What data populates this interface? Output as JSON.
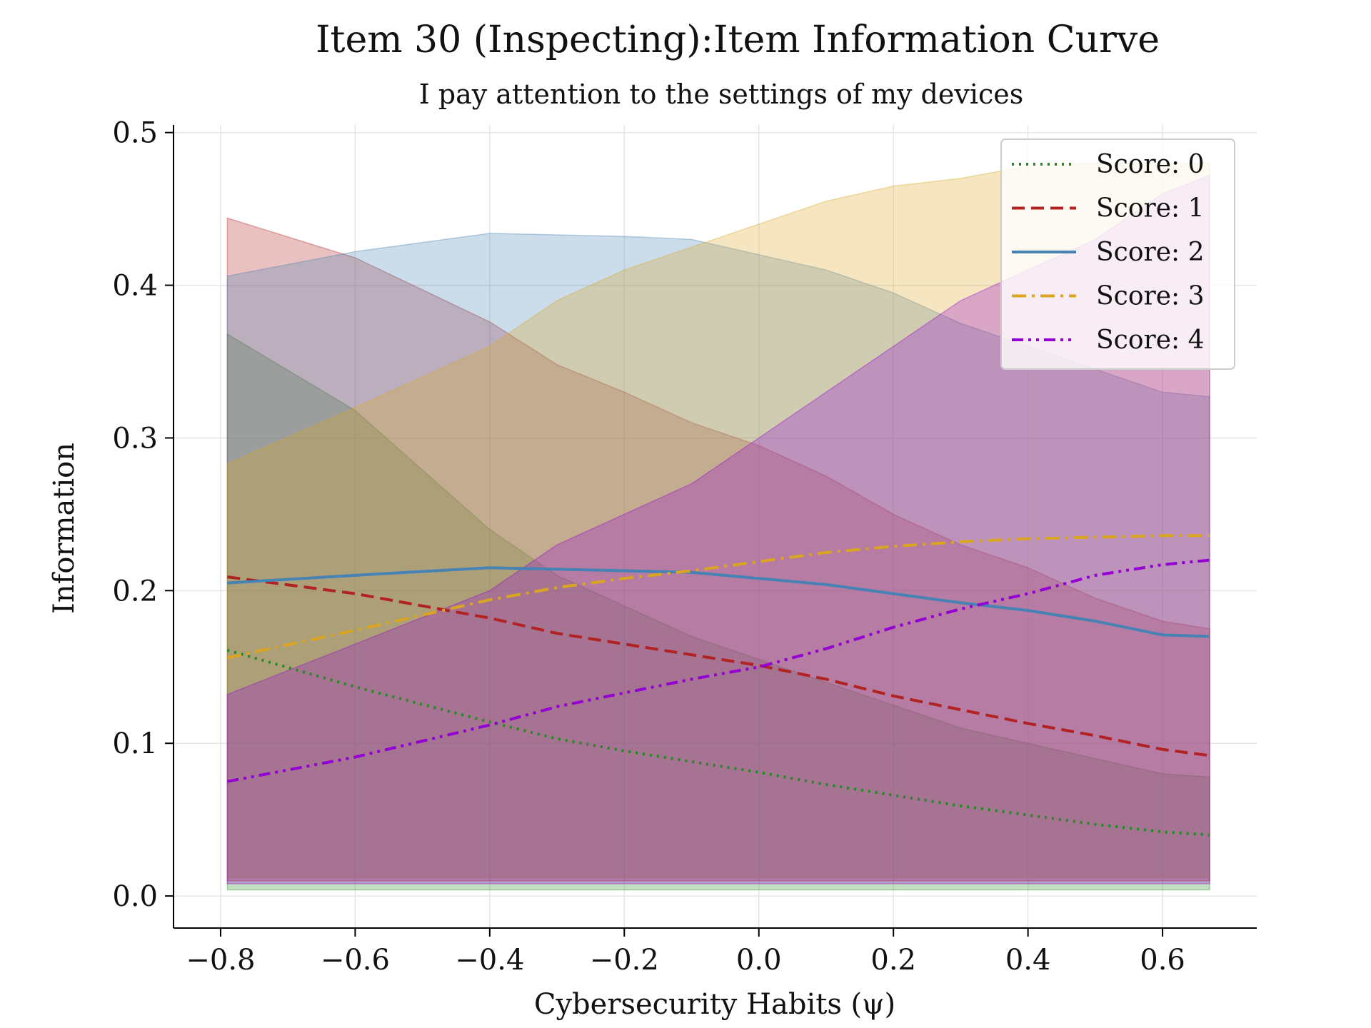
{
  "chart_data": {
    "type": "line",
    "title": "Item 30 (Inspecting):Item Information Curve",
    "subtitle": "I pay attention to the settings of my devices",
    "xlabel": "Cybersecurity Habits (ψ)",
    "ylabel": "Information",
    "xlim": [
      -0.87,
      0.74
    ],
    "ylim": [
      -0.021,
      0.505
    ],
    "xticks": [
      -0.8,
      -0.6,
      -0.4,
      -0.2,
      0.0,
      0.2,
      0.4,
      0.6
    ],
    "xtick_labels": [
      "−0.8",
      "−0.6",
      "−0.4",
      "−0.2",
      "0.0",
      "0.2",
      "0.4",
      "0.6"
    ],
    "yticks": [
      0.0,
      0.1,
      0.2,
      0.3,
      0.4,
      0.5
    ],
    "ytick_labels": [
      "0.0",
      "0.1",
      "0.2",
      "0.3",
      "0.4",
      "0.5"
    ],
    "grid": true,
    "legend_position": "top-right",
    "x": [
      -0.79,
      -0.6,
      -0.4,
      -0.3,
      -0.2,
      -0.1,
      0.0,
      0.1,
      0.2,
      0.3,
      0.4,
      0.5,
      0.6,
      0.67
    ],
    "series": [
      {
        "name": "Score: 0",
        "color": "#228B22",
        "dash": "dotted",
        "values": [
          0.161,
          0.137,
          0.114,
          0.103,
          0.095,
          0.088,
          0.081,
          0.073,
          0.066,
          0.059,
          0.053,
          0.047,
          0.042,
          0.04
        ],
        "upper": [
          0.368,
          0.318,
          0.24,
          0.21,
          0.19,
          0.17,
          0.155,
          0.14,
          0.125,
          0.11,
          0.1,
          0.09,
          0.08,
          0.078
        ],
        "lower": [
          0.004,
          0.004,
          0.004,
          0.004,
          0.004,
          0.004,
          0.004,
          0.004,
          0.004,
          0.004,
          0.004,
          0.004,
          0.004,
          0.004
        ]
      },
      {
        "name": "Score: 1",
        "color": "#B22222",
        "dash": "dashed",
        "values": [
          0.209,
          0.198,
          0.182,
          0.172,
          0.165,
          0.158,
          0.151,
          0.142,
          0.131,
          0.122,
          0.113,
          0.105,
          0.096,
          0.092
        ],
        "upper": [
          0.444,
          0.418,
          0.376,
          0.348,
          0.33,
          0.31,
          0.295,
          0.275,
          0.25,
          0.23,
          0.215,
          0.195,
          0.18,
          0.175
        ],
        "lower": [
          0.01,
          0.01,
          0.01,
          0.01,
          0.01,
          0.01,
          0.01,
          0.01,
          0.01,
          0.01,
          0.01,
          0.01,
          0.01,
          0.01
        ]
      },
      {
        "name": "Score: 2",
        "color": "#4682B4",
        "dash": "solid",
        "values": [
          0.205,
          0.21,
          0.215,
          0.214,
          0.213,
          0.212,
          0.208,
          0.204,
          0.198,
          0.192,
          0.187,
          0.18,
          0.171,
          0.17
        ],
        "upper": [
          0.406,
          0.422,
          0.434,
          0.433,
          0.432,
          0.43,
          0.42,
          0.41,
          0.395,
          0.375,
          0.36,
          0.345,
          0.33,
          0.327
        ],
        "lower": [
          0.012,
          0.012,
          0.012,
          0.012,
          0.012,
          0.012,
          0.012,
          0.012,
          0.012,
          0.012,
          0.012,
          0.012,
          0.012,
          0.012
        ]
      },
      {
        "name": "Score: 3",
        "color": "#DAA520",
        "dash": "dashdot",
        "values": [
          0.156,
          0.174,
          0.194,
          0.202,
          0.208,
          0.213,
          0.219,
          0.225,
          0.229,
          0.232,
          0.234,
          0.235,
          0.236,
          0.236
        ],
        "upper": [
          0.283,
          0.32,
          0.36,
          0.39,
          0.41,
          0.425,
          0.44,
          0.455,
          0.465,
          0.47,
          0.478,
          0.48,
          0.48,
          0.48
        ],
        "lower": [
          0.012,
          0.012,
          0.012,
          0.012,
          0.012,
          0.012,
          0.012,
          0.012,
          0.012,
          0.012,
          0.012,
          0.012,
          0.012,
          0.012
        ]
      },
      {
        "name": "Score: 4",
        "color": "#9400D3",
        "dash": "dashdotdot",
        "values": [
          0.075,
          0.091,
          0.112,
          0.124,
          0.133,
          0.142,
          0.15,
          0.162,
          0.176,
          0.188,
          0.198,
          0.21,
          0.217,
          0.22
        ],
        "upper": [
          0.132,
          0.165,
          0.2,
          0.23,
          0.25,
          0.27,
          0.3,
          0.33,
          0.36,
          0.39,
          0.41,
          0.43,
          0.46,
          0.472
        ],
        "lower": [
          0.008,
          0.008,
          0.008,
          0.008,
          0.008,
          0.008,
          0.008,
          0.008,
          0.008,
          0.008,
          0.008,
          0.008,
          0.008,
          0.008
        ]
      }
    ]
  }
}
